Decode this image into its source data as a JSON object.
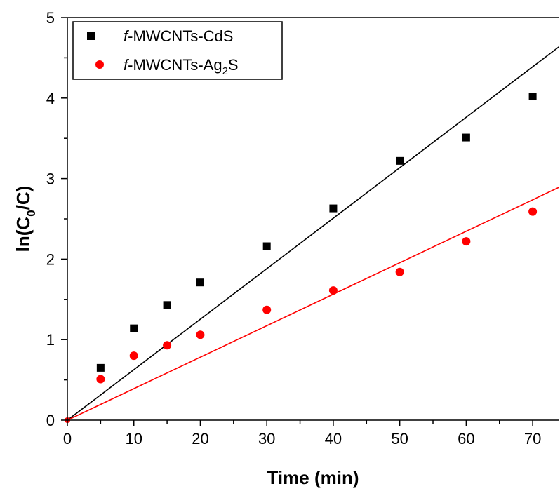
{
  "chart_data": {
    "type": "scatter",
    "xlabel": "Time (min)",
    "ylabel_main": "ln(C",
    "ylabel_sub": "0",
    "ylabel_end": "/C)",
    "xlim": [
      0,
      74
    ],
    "ylim": [
      0,
      5
    ],
    "xticks": [
      "0",
      "10",
      "20",
      "30",
      "40",
      "50",
      "60",
      "70"
    ],
    "yticks": [
      "0",
      "1",
      "2",
      "3",
      "4",
      "5"
    ],
    "legend_position": "top-left",
    "series": [
      {
        "name_prefix": "f",
        "name_main": "-MWCNTs-CdS",
        "name_sub": "",
        "name_end": "",
        "color": "#000000",
        "marker": "square",
        "x": [
          5,
          10,
          15,
          20,
          30,
          40,
          50,
          60,
          70
        ],
        "y": [
          0.65,
          1.14,
          1.43,
          1.71,
          2.16,
          2.63,
          3.22,
          3.51,
          4.02
        ],
        "fit_slope": 0.0627
      },
      {
        "name_prefix": "f",
        "name_main": "-MWCNTs-Ag",
        "name_sub": "2",
        "name_end": "S",
        "color": "#ff0000",
        "marker": "circle",
        "x": [
          5,
          10,
          15,
          20,
          30,
          40,
          50,
          60,
          70
        ],
        "y": [
          0.51,
          0.8,
          0.93,
          1.06,
          1.37,
          1.61,
          1.84,
          2.22,
          2.59
        ],
        "fit_slope": 0.0391
      }
    ]
  }
}
